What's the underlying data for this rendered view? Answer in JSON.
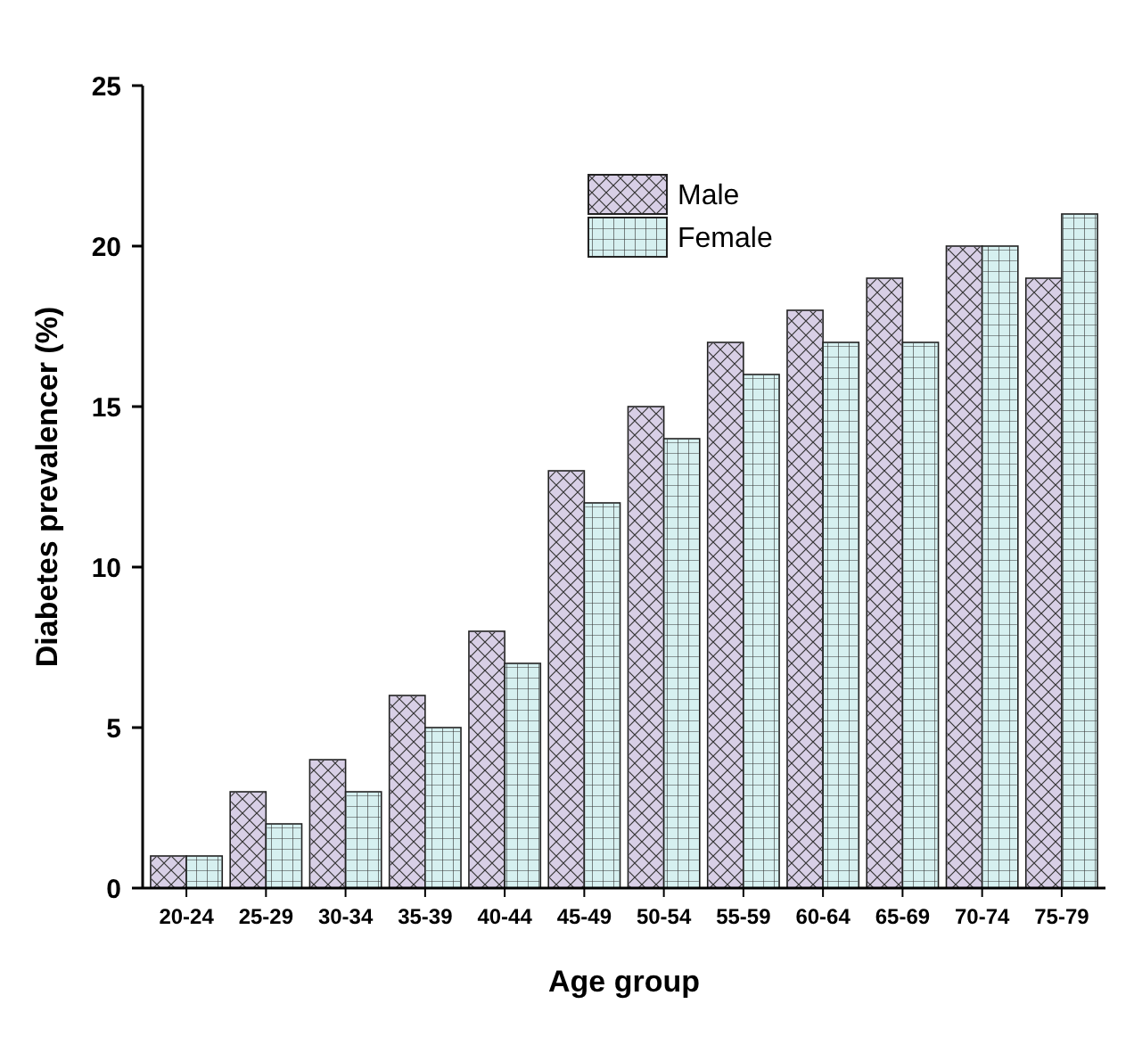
{
  "chart_data": {
    "type": "bar",
    "xlabel": "Age group",
    "ylabel": "Diabetes prevalencer (%)",
    "categories": [
      "20-24",
      "25-29",
      "30-34",
      "35-39",
      "40-44",
      "45-49",
      "50-54",
      "55-59",
      "60-64",
      "65-69",
      "70-74",
      "75-79"
    ],
    "series": [
      {
        "name": "Male",
        "color": "#d8cfe6",
        "values": [
          1,
          3,
          4,
          6,
          8,
          13,
          15,
          17,
          18,
          19,
          20,
          19
        ]
      },
      {
        "name": "Female",
        "color": "#d6f0f0",
        "values": [
          1,
          2,
          3,
          5,
          7,
          12,
          14,
          16,
          17,
          17,
          20,
          21
        ]
      }
    ],
    "ylim": [
      0,
      25
    ],
    "yticks": [
      0,
      5,
      10,
      15,
      20,
      25
    ],
    "grid": false,
    "legend": "top"
  }
}
